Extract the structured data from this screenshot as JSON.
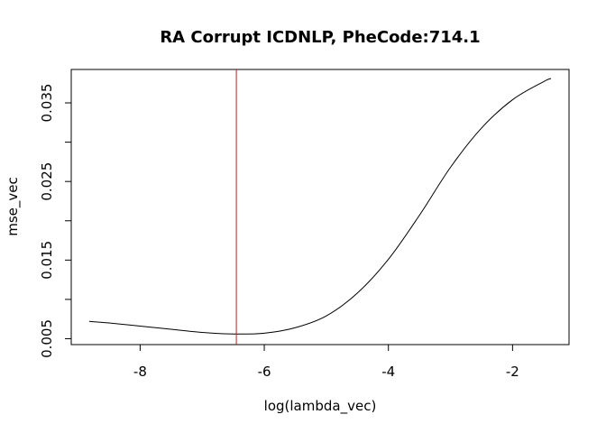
{
  "chart_data": {
    "type": "line",
    "title": "RA  Corrupt ICDNLP,  PheCode:714.1",
    "xlabel": "log(lambda_vec)",
    "ylabel": "mse_vec",
    "xlim": [
      -9.11,
      -1.09
    ],
    "ylim": [
      0.00425,
      0.03925
    ],
    "x_ticks": [
      -8,
      -6,
      -4,
      -2
    ],
    "y_ticks": [
      0.005,
      0.01,
      0.015,
      0.02,
      0.025,
      0.03,
      0.035
    ],
    "y_tick_labels": [
      "0.005",
      "",
      "0.015",
      "",
      "0.025",
      "",
      "0.035"
    ],
    "grid": false,
    "vline": {
      "x": -6.45,
      "color": "#b22222"
    },
    "series": [
      {
        "color": "#000000",
        "x": [
          -8.82,
          -8.5,
          -8.0,
          -7.5,
          -7.0,
          -6.5,
          -6.0,
          -5.5,
          -5.0,
          -4.5,
          -4.0,
          -3.5,
          -3.0,
          -2.5,
          -2.0,
          -1.5,
          -1.38
        ],
        "y": [
          0.0072,
          0.007,
          0.0066,
          0.0062,
          0.0058,
          0.0056,
          0.0057,
          0.0064,
          0.0079,
          0.0108,
          0.0151,
          0.0207,
          0.0268,
          0.0318,
          0.0354,
          0.0377,
          0.0381
        ]
      }
    ]
  }
}
